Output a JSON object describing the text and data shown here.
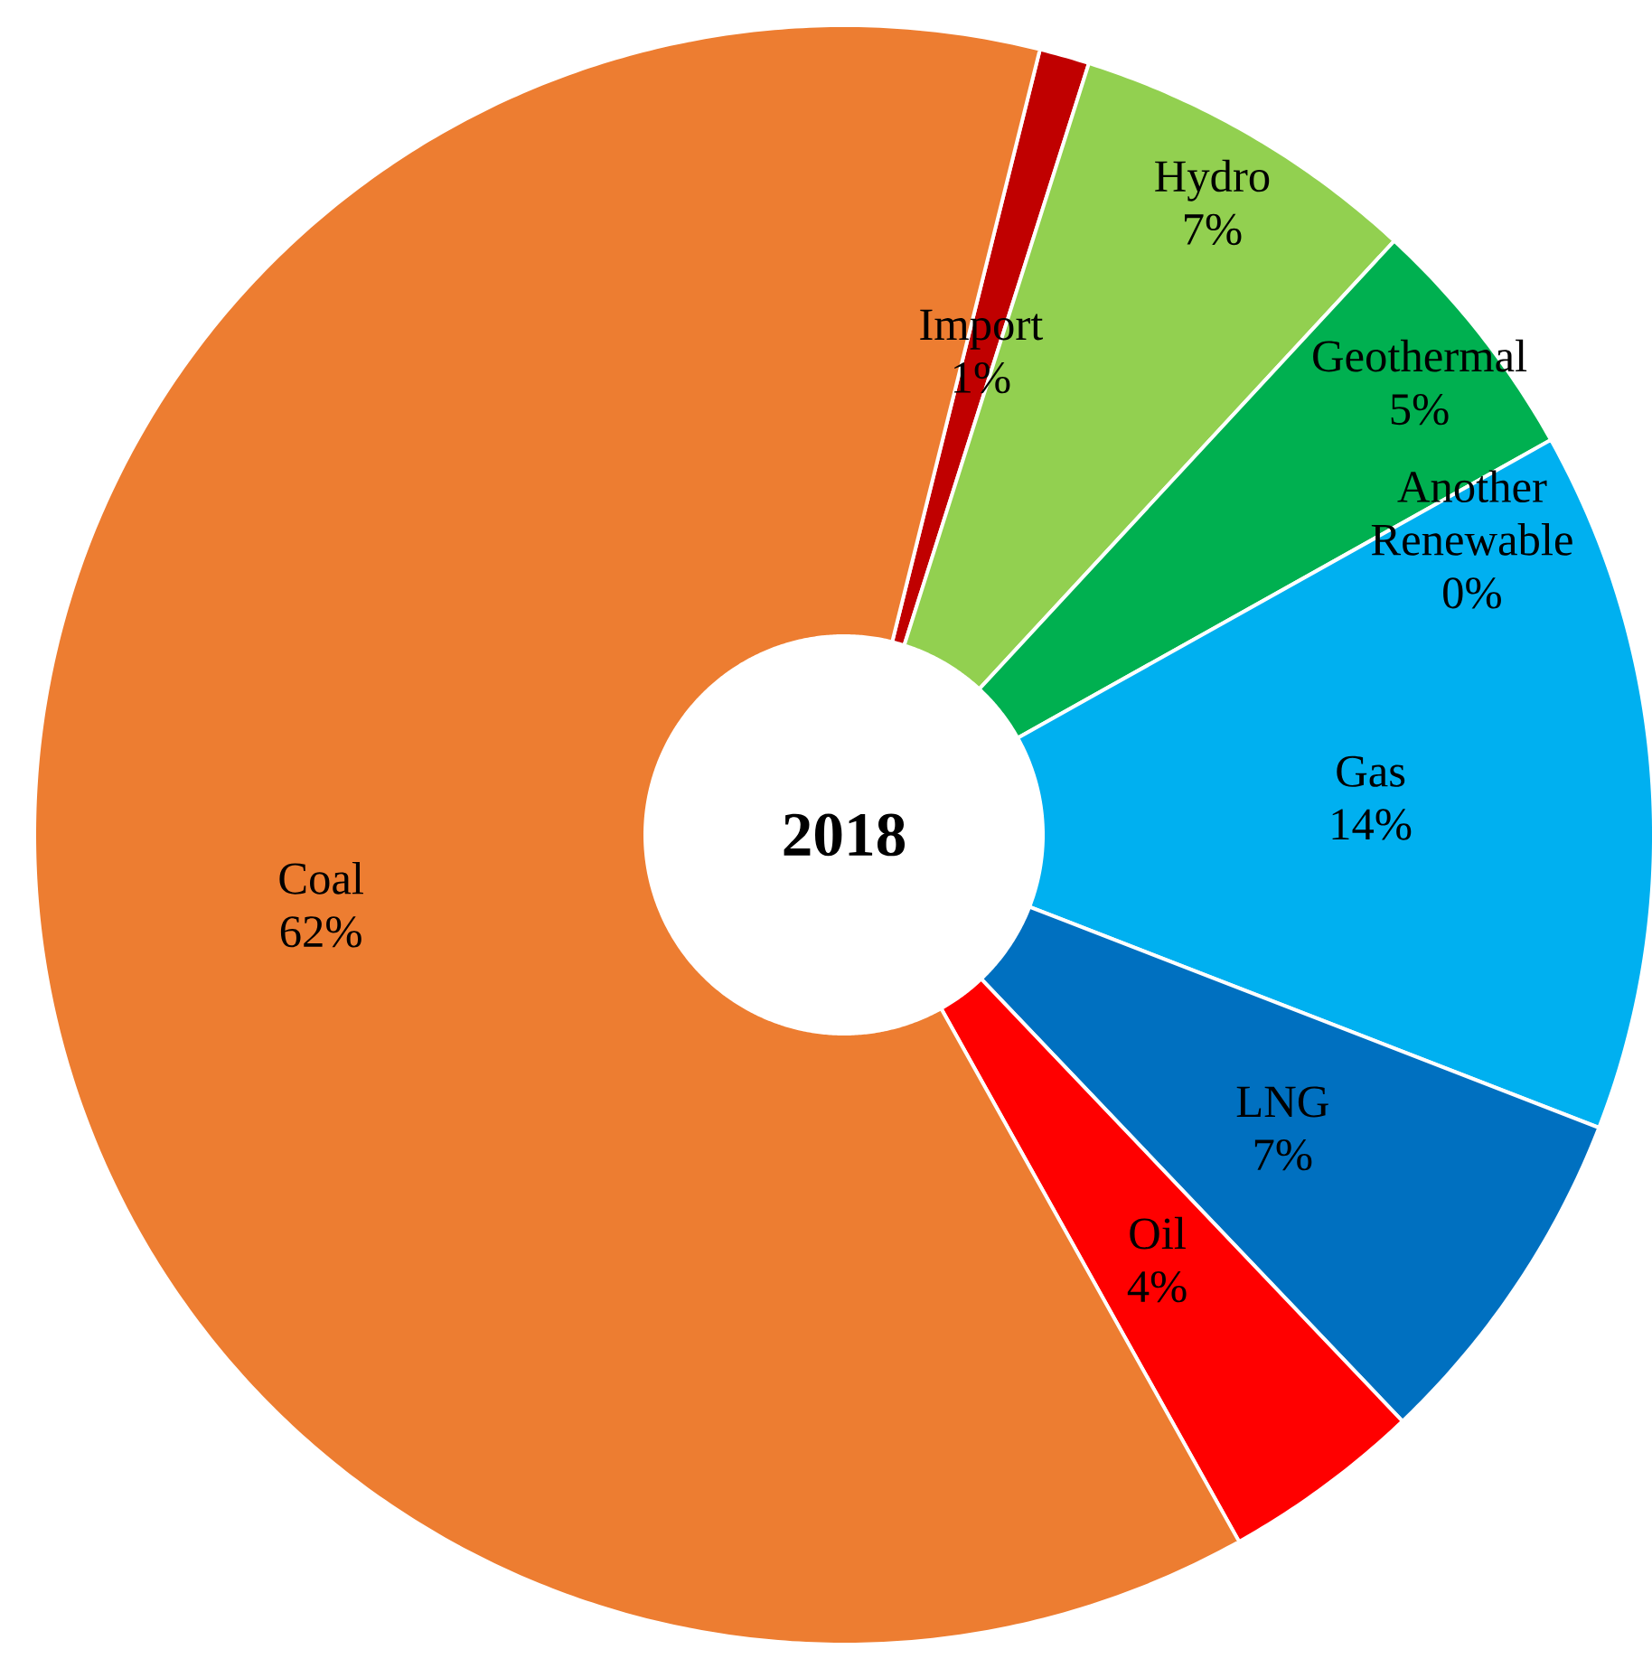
{
  "chart_data": {
    "type": "donut",
    "title": "2018",
    "categories": [
      "Import",
      "Hydro",
      "Geothermal",
      "Another Renewable",
      "Gas",
      "LNG",
      "Oil",
      "Coal"
    ],
    "values": [
      1,
      7,
      5,
      0,
      14,
      7,
      4,
      62
    ],
    "value_labels": [
      "1%",
      "7%",
      "5%",
      "0%",
      "14%",
      "7%",
      "4%",
      "62%"
    ],
    "colors": [
      "#c00000",
      "#92d050",
      "#00b050",
      "#70ad47",
      "#00b0f0",
      "#0070c0",
      "#ff0000",
      "#ed7d31"
    ]
  }
}
